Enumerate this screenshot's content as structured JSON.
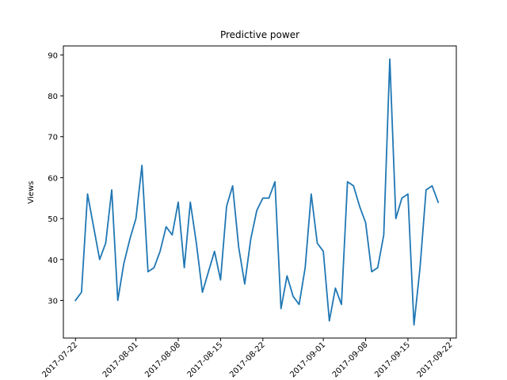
{
  "chart_data": {
    "type": "line",
    "title": "Predictive power",
    "xlabel": "",
    "ylabel": "Views",
    "x_tick_labels": [
      "2017-07-22",
      "2017-08-01",
      "2017-08-08",
      "2017-08-15",
      "2017-08-22",
      "2017-09-01",
      "2017-09-08",
      "2017-09-15",
      "2017-09-22"
    ],
    "y_ticks": [
      30,
      40,
      50,
      60,
      70,
      80,
      90
    ],
    "ylim": [
      20.8,
      92.2
    ],
    "xlim": [
      "2017-07-20",
      "2017-09-23"
    ],
    "grid": false,
    "line_color": "#1f77b4",
    "series": [
      {
        "x": [
          "2017-07-22",
          "2017-07-23",
          "2017-07-24",
          "2017-07-25",
          "2017-07-26",
          "2017-07-27",
          "2017-07-28",
          "2017-07-29",
          "2017-07-30",
          "2017-07-31",
          "2017-08-01",
          "2017-08-02",
          "2017-08-03",
          "2017-08-04",
          "2017-08-05",
          "2017-08-06",
          "2017-08-07",
          "2017-08-08",
          "2017-08-09",
          "2017-08-10",
          "2017-08-11",
          "2017-08-12",
          "2017-08-13",
          "2017-08-14",
          "2017-08-15",
          "2017-08-16",
          "2017-08-17",
          "2017-08-18",
          "2017-08-19",
          "2017-08-20",
          "2017-08-21",
          "2017-08-22",
          "2017-08-23",
          "2017-08-24",
          "2017-08-25",
          "2017-08-26",
          "2017-08-27",
          "2017-08-28",
          "2017-08-29",
          "2017-08-30",
          "2017-08-31",
          "2017-09-01",
          "2017-09-02",
          "2017-09-03",
          "2017-09-04",
          "2017-09-05",
          "2017-09-06",
          "2017-09-07",
          "2017-09-08",
          "2017-09-09",
          "2017-09-10",
          "2017-09-11",
          "2017-09-12",
          "2017-09-13",
          "2017-09-14",
          "2017-09-15",
          "2017-09-16",
          "2017-09-17",
          "2017-09-18",
          "2017-09-19",
          "2017-09-20"
        ],
        "values": [
          30,
          32,
          56,
          48,
          40,
          44,
          57,
          30,
          39,
          45,
          50,
          63,
          37,
          38,
          42,
          48,
          46,
          54,
          38,
          54,
          44,
          32,
          37,
          42,
          35,
          53,
          58,
          43,
          34,
          45,
          52,
          55,
          55,
          59,
          28,
          36,
          31,
          29,
          38,
          56,
          44,
          42,
          25,
          33,
          29,
          59,
          58,
          53,
          49,
          37,
          38,
          46,
          89,
          50,
          55,
          56,
          24,
          38,
          57,
          58,
          54
        ]
      }
    ]
  }
}
